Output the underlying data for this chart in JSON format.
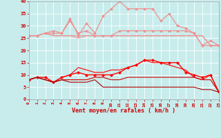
{
  "x": [
    0,
    1,
    2,
    3,
    4,
    5,
    6,
    7,
    8,
    9,
    10,
    11,
    12,
    13,
    14,
    15,
    16,
    17,
    18,
    19,
    20,
    21,
    22,
    23
  ],
  "series": [
    {
      "values": [
        26,
        26,
        27,
        26,
        26,
        26,
        25,
        26,
        26,
        26,
        26,
        26,
        26,
        26,
        26,
        26,
        26,
        26,
        26,
        26,
        26,
        26,
        22,
        22
      ],
      "color": "#f09090",
      "marker": null,
      "lw": 0.8
    },
    {
      "values": [
        26,
        26,
        27,
        26,
        26,
        26,
        26,
        26,
        26,
        26,
        26,
        26,
        26,
        26,
        26,
        26,
        26,
        26,
        26,
        26,
        26,
        26,
        22,
        22
      ],
      "color": "#f09090",
      "marker": null,
      "lw": 0.8
    },
    {
      "values": [
        26,
        26,
        27,
        27,
        27,
        32,
        27,
        28,
        26,
        26,
        26,
        28,
        28,
        28,
        28,
        28,
        28,
        28,
        28,
        28,
        27,
        22,
        22,
        22
      ],
      "color": "#f09090",
      "marker": "D",
      "lw": 0.9,
      "ms": 1.8
    },
    {
      "values": [
        26,
        26,
        27,
        28,
        27,
        33,
        26,
        31,
        27,
        34,
        37,
        40,
        37,
        37,
        37,
        37,
        32,
        35,
        30,
        29,
        27,
        22,
        24,
        22
      ],
      "color": "#f09090",
      "marker": "D",
      "lw": 0.9,
      "ms": 1.8
    },
    {
      "values": [
        8,
        9,
        9,
        7,
        9,
        10,
        11,
        10,
        10,
        10,
        10,
        11,
        13,
        14,
        16,
        16,
        15,
        15,
        15,
        11,
        10,
        9,
        10,
        3
      ],
      "color": "#ff0000",
      "marker": "D",
      "lw": 1.0,
      "ms": 2.0
    },
    {
      "values": [
        8,
        9,
        8,
        7,
        9,
        10,
        13,
        12,
        11,
        11,
        12,
        12,
        13,
        14,
        16,
        15,
        15,
        14,
        13,
        12,
        9,
        8,
        10,
        3
      ],
      "color": "#ff0000",
      "marker": null,
      "lw": 0.8
    },
    {
      "values": [
        8,
        9,
        8,
        7,
        8,
        8,
        8,
        8,
        9,
        9,
        8,
        8,
        9,
        9,
        9,
        9,
        9,
        9,
        9,
        9,
        9,
        8,
        8,
        3
      ],
      "color": "#cc0000",
      "marker": null,
      "lw": 0.8
    },
    {
      "values": [
        8,
        9,
        8,
        7,
        8,
        7,
        7,
        7,
        8,
        5,
        5,
        5,
        5,
        5,
        5,
        5,
        5,
        5,
        5,
        5,
        5,
        4,
        4,
        3
      ],
      "color": "#aa0000",
      "marker": null,
      "lw": 0.8
    }
  ],
  "xlabel": "Vent moyen/en rafales ( km/h )",
  "xlim": [
    0,
    23
  ],
  "ylim": [
    0,
    40
  ],
  "yticks": [
    0,
    5,
    10,
    15,
    20,
    25,
    30,
    35,
    40
  ],
  "xticks": [
    0,
    1,
    2,
    3,
    4,
    5,
    6,
    7,
    8,
    9,
    10,
    11,
    12,
    13,
    14,
    15,
    16,
    17,
    18,
    19,
    20,
    21,
    22,
    23
  ],
  "bg_color": "#c8ecec",
  "grid_color": "#b0d8d8",
  "axis_label_color": "#cc0000",
  "tick_color": "#cc0000"
}
